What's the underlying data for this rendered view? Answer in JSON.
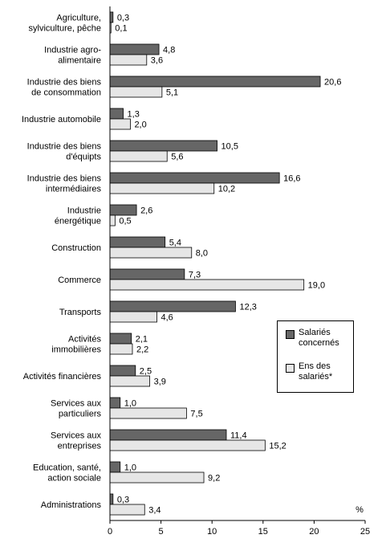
{
  "chart_data": {
    "type": "bar",
    "orientation": "horizontal",
    "categories": [
      "Agriculture,\nsylviculture, pêche",
      "Industrie agro-\nalimentaire",
      "Industrie des biens\nde consommation",
      "Industrie automobile",
      "Industrie des biens\nd'équipts",
      "Industrie des biens\nintermédiaires",
      "Industrie\nénergétique",
      "Construction",
      "Commerce",
      "Transports",
      "Activités\nimmobilières",
      "Activités financières",
      "Services aux\nparticuliers",
      "Services aux\nentreprises",
      "Education, santé,\naction sociale",
      "Administrations"
    ],
    "series": [
      {
        "name": "Salariés\nconcernés",
        "color": "#666666",
        "values": [
          0.3,
          4.8,
          20.6,
          1.3,
          10.5,
          16.6,
          2.6,
          5.4,
          7.3,
          12.3,
          2.1,
          2.5,
          1.0,
          11.4,
          1.0,
          0.3
        ],
        "value_labels": [
          "0,3",
          "4,8",
          "20,6",
          "1,3",
          "10,5",
          "16,6",
          "2,6",
          "5,4",
          "7,3",
          "12,3",
          "2,1",
          "2,5",
          "1,0",
          "11,4",
          "1,0",
          "0,3"
        ]
      },
      {
        "name": "Ens des\nsalariés*",
        "color": "#e6e6e6",
        "values": [
          0.1,
          3.6,
          5.1,
          2.0,
          5.6,
          10.2,
          0.5,
          8.0,
          19.0,
          4.6,
          2.2,
          3.9,
          7.5,
          15.2,
          9.2,
          3.4
        ],
        "value_labels": [
          "0,1",
          "3,6",
          "5,1",
          "2,0",
          "5,6",
          "10,2",
          "0,5",
          "8,0",
          "19,0",
          "4,6",
          "2,2",
          "3,9",
          "7,5",
          "15,2",
          "9,2",
          "3,4"
        ]
      }
    ],
    "xlim": [
      0,
      25
    ],
    "xticks": [
      0,
      5,
      10,
      15,
      20,
      25
    ],
    "xunit_label": "%",
    "legend_position": "right",
    "grid": false
  }
}
